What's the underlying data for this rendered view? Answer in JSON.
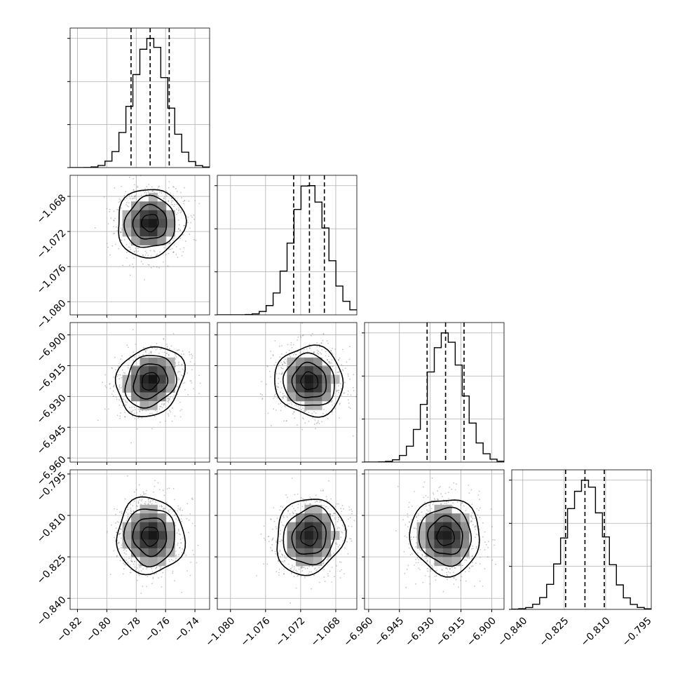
{
  "chart_data": {
    "type": "corner",
    "variables": [
      {
        "ticks": [
          "−0.82",
          "−0.80",
          "−0.78",
          "−0.76",
          "−0.74"
        ],
        "range": [
          -0.825,
          -0.73
        ],
        "tick_values": [
          -0.82,
          -0.8,
          -0.78,
          -0.76,
          -0.74
        ],
        "mean": -0.7705,
        "std": 0.0115,
        "quantiles_16_50_84": [
          -0.7835,
          -0.7705,
          -0.7575
        ]
      },
      {
        "ticks": [
          "−1.080",
          "−1.076",
          "−1.072",
          "−1.068"
        ],
        "range": [
          -1.0815,
          -1.0656
        ],
        "tick_values": [
          -1.08,
          -1.076,
          -1.072,
          -1.068
        ],
        "mean": -1.071,
        "std": 0.00195,
        "quantiles_16_50_84": [
          -1.0728,
          -1.071,
          -1.0693
        ]
      },
      {
        "ticks": [
          "−6.960",
          "−6.945",
          "−6.930",
          "−6.915",
          "−6.900"
        ],
        "range": [
          -6.962,
          -6.894
        ],
        "tick_values": [
          -6.96,
          -6.945,
          -6.93,
          -6.915,
          -6.9
        ],
        "mean": -6.9225,
        "std": 0.0085,
        "quantiles_16_50_84": [
          -6.9315,
          -6.9225,
          -6.9135
        ]
      },
      {
        "ticks": [
          "−0.840",
          "−0.825",
          "−0.810",
          "−0.795"
        ],
        "range": [
          -0.844,
          -0.7935
        ],
        "tick_values": [
          -0.84,
          -0.825,
          -0.81,
          -0.795
        ],
        "mean": -0.8175,
        "std": 0.0069,
        "quantiles_16_50_84": [
          -0.8245,
          -0.8175,
          -0.8105
        ]
      }
    ],
    "diagonal": "histogram",
    "off_diagonal": "2d-density-with-contours",
    "grid": true,
    "colors": {
      "histogram": "#000000",
      "density": "#000000",
      "scatter": "#7f7f7f",
      "grid": "#b0b0b0",
      "frame": "#000000"
    }
  }
}
